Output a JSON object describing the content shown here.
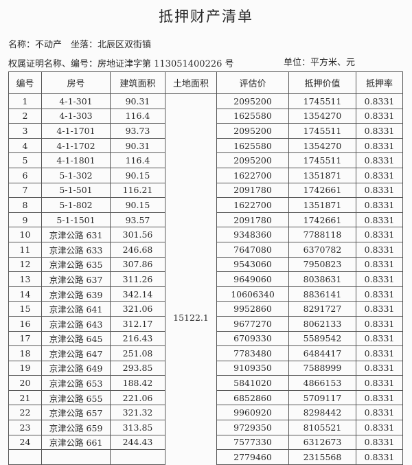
{
  "title": "抵押财产清单",
  "meta": {
    "name_line": "名称：不动产　坐落：北辰区双街镇",
    "cert_line": "权属证明名称、编号：房地证津字第 113051400226 号",
    "unit": "单位：平方米、元"
  },
  "table": {
    "headers": [
      "编号",
      "房号",
      "建筑面积",
      "土地面积",
      "评估价",
      "抵押价值",
      "抵押率"
    ],
    "land_area": "15122.1",
    "rows": [
      [
        "1",
        "4-1-301",
        "90.31",
        "2095200",
        "1745511",
        "0.8331"
      ],
      [
        "2",
        "4-1-303",
        "116.4",
        "1625580",
        "1354270",
        "0.8331"
      ],
      [
        "3",
        "4-1-1701",
        "93.73",
        "2095200",
        "1745511",
        "0.8331"
      ],
      [
        "4",
        "4-1-1702",
        "90.31",
        "1625580",
        "1354270",
        "0.8331"
      ],
      [
        "5",
        "4-1-1801",
        "116.4",
        "2095200",
        "1745511",
        "0.8331"
      ],
      [
        "6",
        "5-1-302",
        "90.15",
        "1622700",
        "1351871",
        "0.8331"
      ],
      [
        "7",
        "5-1-501",
        "116.21",
        "2091780",
        "1742661",
        "0.8331"
      ],
      [
        "8",
        "5-1-802",
        "90.15",
        "1622700",
        "1351871",
        "0.8331"
      ],
      [
        "9",
        "5-1-1501",
        "93.57",
        "2091780",
        "1742661",
        "0.8331"
      ],
      [
        "10",
        "京津公路 631",
        "301.56",
        "9348360",
        "7788118",
        "0.8331"
      ],
      [
        "11",
        "京津公路 633",
        "246.68",
        "7647080",
        "6370782",
        "0.8331"
      ],
      [
        "12",
        "京津公路 635",
        "307.86",
        "9543060",
        "7950823",
        "0.8331"
      ],
      [
        "13",
        "京津公路 637",
        "311.26",
        "9649060",
        "8038631",
        "0.8331"
      ],
      [
        "14",
        "京津公路 639",
        "342.14",
        "10606340",
        "8836141",
        "0.8331"
      ],
      [
        "15",
        "京津公路 641",
        "321.06",
        "9952860",
        "8291727",
        "0.8331"
      ],
      [
        "16",
        "京津公路 643",
        "312.17",
        "9677270",
        "8062133",
        "0.8331"
      ],
      [
        "17",
        "京津公路 645",
        "216.43",
        "6709330",
        "5589542",
        "0.8331"
      ],
      [
        "18",
        "京津公路 647",
        "251.08",
        "7783480",
        "6484417",
        "0.8331"
      ],
      [
        "19",
        "京津公路 649",
        "293.85",
        "9109350",
        "7588999",
        "0.8331"
      ],
      [
        "20",
        "京津公路 653",
        "188.42",
        "5841020",
        "4866153",
        "0.8331"
      ],
      [
        "21",
        "京津公路 655",
        "221.06",
        "6852860",
        "5709117",
        "0.8331"
      ],
      [
        "22",
        "京津公路 657",
        "321.32",
        "9960920",
        "8298442",
        "0.8331"
      ],
      [
        "23",
        "京津公路 659",
        "313.85",
        "9729350",
        "8105521",
        "0.8331"
      ],
      [
        "24",
        "京津公路 661",
        "244.43",
        "7577330",
        "6312673",
        "0.8331"
      ],
      [
        "",
        "",
        "",
        "2779460",
        "2315568",
        "0.8331"
      ]
    ]
  }
}
